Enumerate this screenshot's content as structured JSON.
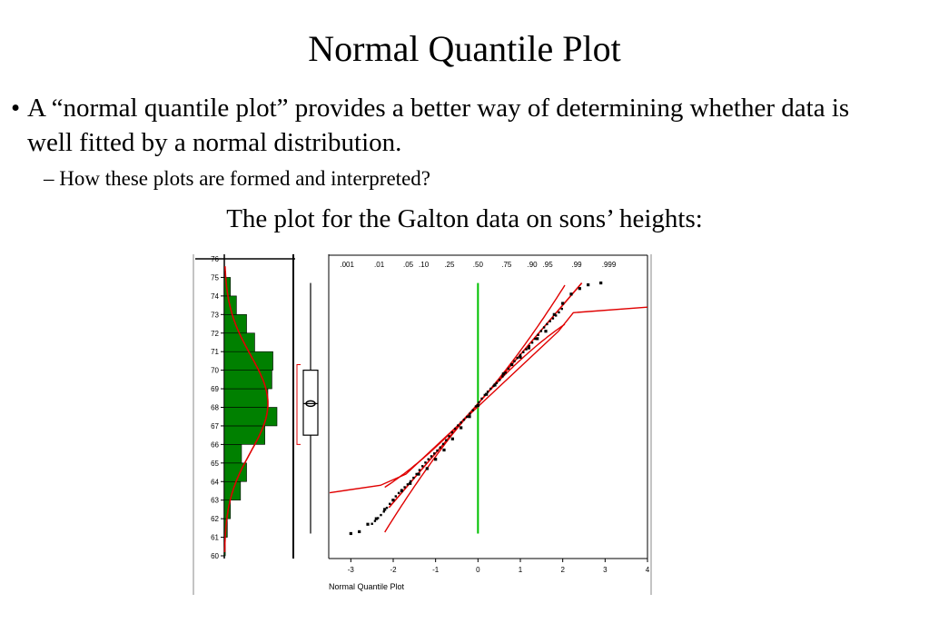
{
  "slide": {
    "title": "Normal Quantile Plot",
    "bullet_marker": "•",
    "bullet": "A “normal quantile plot” provides a better way of determining whether data is well fitted by a normal distribution.",
    "sub_bullet": "– How these plots are formed and interpreted?",
    "caption": "The plot for the Galton data on sons’ heights:"
  },
  "chart_data": {
    "type": "scatter",
    "xlabel": "Normal Quantile Plot",
    "y_ticks": [
      "60",
      "61",
      "62",
      "63",
      "64",
      "65",
      "66",
      "67",
      "68",
      "69",
      "70",
      "71",
      "72",
      "73",
      "74",
      "75",
      "76"
    ],
    "ylim": [
      60,
      76
    ],
    "x_ticks": [
      "-3",
      "-2",
      "-1",
      "0",
      "1",
      "2",
      "3",
      "4"
    ],
    "xlim": [
      -3.5,
      4
    ],
    "top_ticks": [
      ".001",
      ".01",
      ".05",
      ".10",
      ".25",
      ".50",
      ".75",
      ".90",
      ".95",
      ".99",
      ".999"
    ],
    "histogram": {
      "bins": [
        60,
        61,
        62,
        63,
        64,
        65,
        66,
        67,
        68,
        69,
        70,
        71,
        72,
        73,
        74
      ],
      "counts": [
        1,
        3,
        6,
        16,
        22,
        17,
        40,
        52,
        43,
        47,
        48,
        30,
        22,
        12,
        6
      ]
    },
    "boxplot": {
      "min": 61.2,
      "q1": 66.5,
      "median": 68.2,
      "mean": 68.2,
      "q3": 70.0,
      "max": 74.7
    },
    "quantile_series": [
      {
        "x": -3.0,
        "y": 61.2
      },
      {
        "x": -2.8,
        "y": 61.3
      },
      {
        "x": -2.6,
        "y": 61.7
      },
      {
        "x": -2.4,
        "y": 62.0
      },
      {
        "x": -2.2,
        "y": 62.5
      },
      {
        "x": -2.0,
        "y": 63.0
      },
      {
        "x": -1.8,
        "y": 63.5
      },
      {
        "x": -1.6,
        "y": 63.9
      },
      {
        "x": -1.4,
        "y": 64.4
      },
      {
        "x": -1.2,
        "y": 64.7
      },
      {
        "x": -1.0,
        "y": 65.2
      },
      {
        "x": -0.8,
        "y": 65.7
      },
      {
        "x": -0.6,
        "y": 66.3
      },
      {
        "x": -0.4,
        "y": 66.9
      },
      {
        "x": -0.2,
        "y": 67.5
      },
      {
        "x": 0.0,
        "y": 68.1
      },
      {
        "x": 0.2,
        "y": 68.7
      },
      {
        "x": 0.4,
        "y": 69.2
      },
      {
        "x": 0.6,
        "y": 69.8
      },
      {
        "x": 0.8,
        "y": 70.3
      },
      {
        "x": 1.0,
        "y": 70.7
      },
      {
        "x": 1.2,
        "y": 71.2
      },
      {
        "x": 1.4,
        "y": 71.7
      },
      {
        "x": 1.6,
        "y": 72.1
      },
      {
        "x": 1.8,
        "y": 73.0
      },
      {
        "x": 2.0,
        "y": 73.6
      },
      {
        "x": 2.2,
        "y": 74.1
      },
      {
        "x": 2.4,
        "y": 74.4
      },
      {
        "x": 2.6,
        "y": 74.6
      },
      {
        "x": 2.9,
        "y": 74.7
      }
    ],
    "colors": {
      "histogram": "#008000",
      "fit": "#e00000",
      "reference": "#00c000",
      "points": "#000000"
    }
  }
}
